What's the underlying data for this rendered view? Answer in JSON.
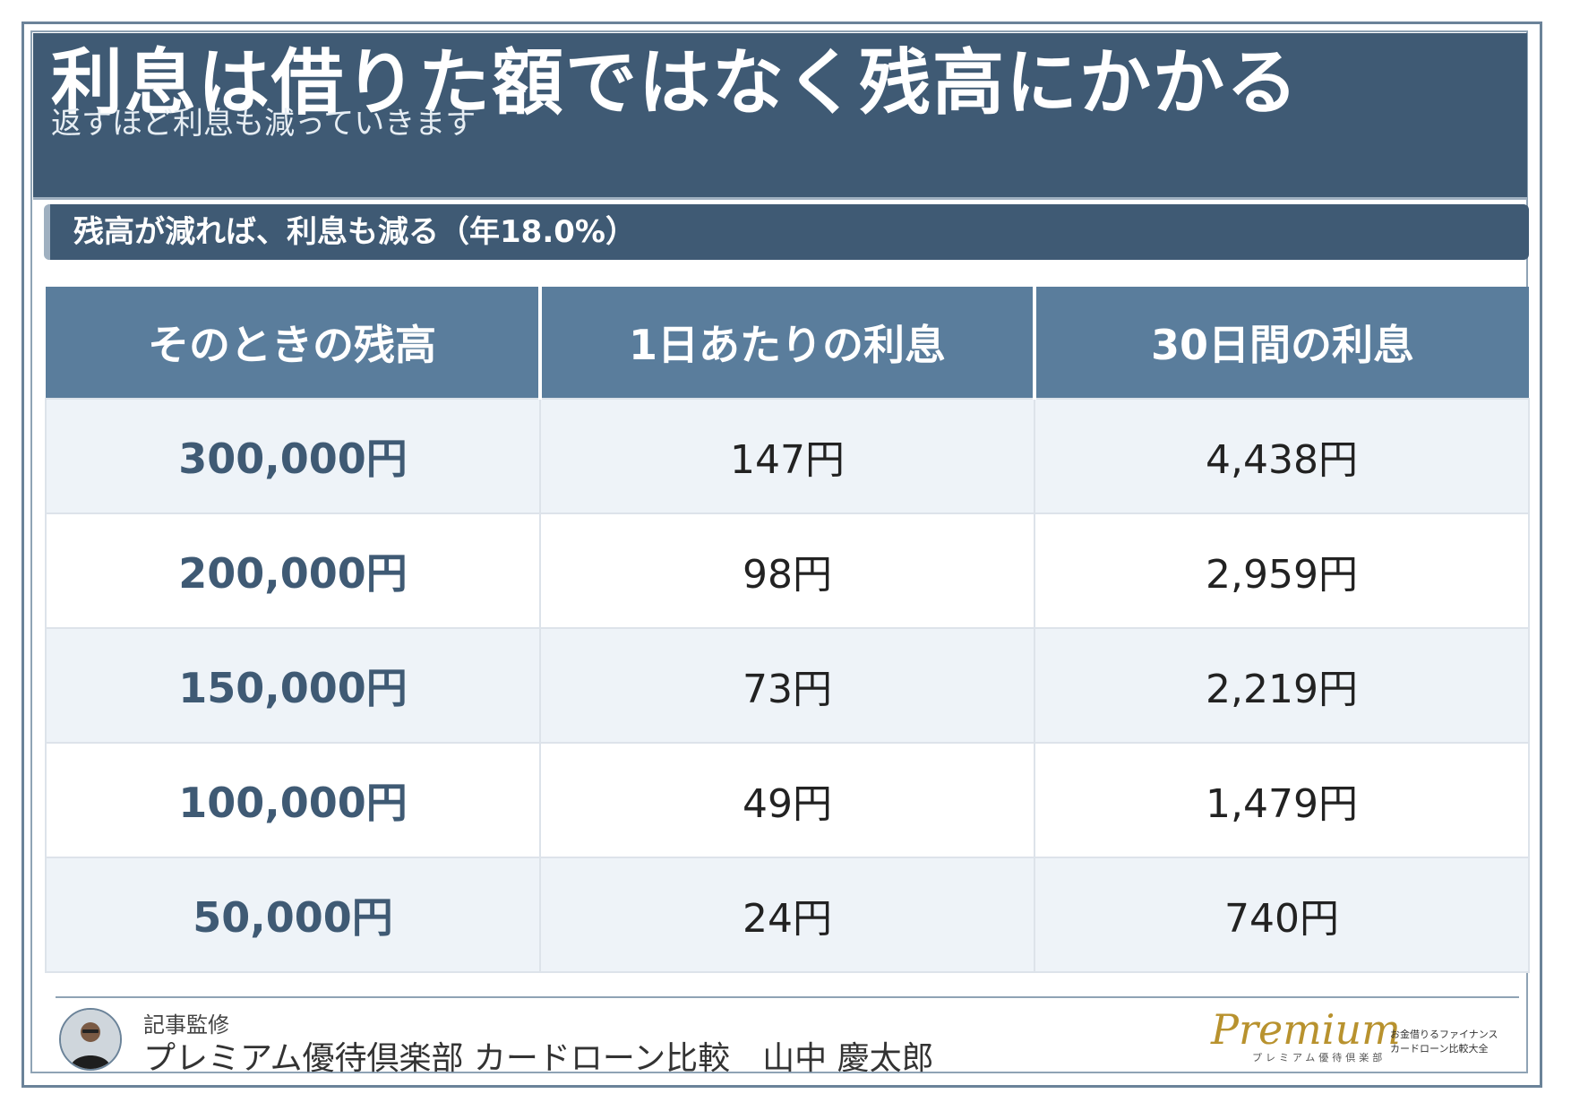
{
  "header": {
    "title": "利息は借りた額ではなく残高にかかる",
    "subtitle": "返すほど利息も減っていきます"
  },
  "section": {
    "label": "残高が減れば、利息も減る（年18.0%）"
  },
  "table": {
    "columns": [
      "そのときの残高",
      "1日あたりの利息",
      "30日間の利息"
    ],
    "rows": [
      {
        "balance": "300,000円",
        "daily": "147円",
        "thirty_day": "4,438円"
      },
      {
        "balance": "200,000円",
        "daily": "98円",
        "thirty_day": "2,959円"
      },
      {
        "balance": "150,000円",
        "daily": "73円",
        "thirty_day": "2,219円"
      },
      {
        "balance": "100,000円",
        "daily": "49円",
        "thirty_day": "1,479円"
      },
      {
        "balance": "50,000円",
        "daily": "24円",
        "thirty_day": "740円"
      }
    ]
  },
  "footer": {
    "supervisor_label": "記事監修",
    "supervisor_name": "プレミアム優待倶楽部 カードローン比較　山中 慶太郎",
    "logo": {
      "script": "Premium",
      "sub": "プレミアム優待倶楽部",
      "tag1": "お金借りるファイナンス",
      "tag2": "カードローン比較大全"
    }
  },
  "colors": {
    "header_bg": "#3f5a74",
    "table_header_bg": "#5a7d9c",
    "row_alt_bg": "#eef3f8",
    "logo_gold": "#b8922e"
  }
}
